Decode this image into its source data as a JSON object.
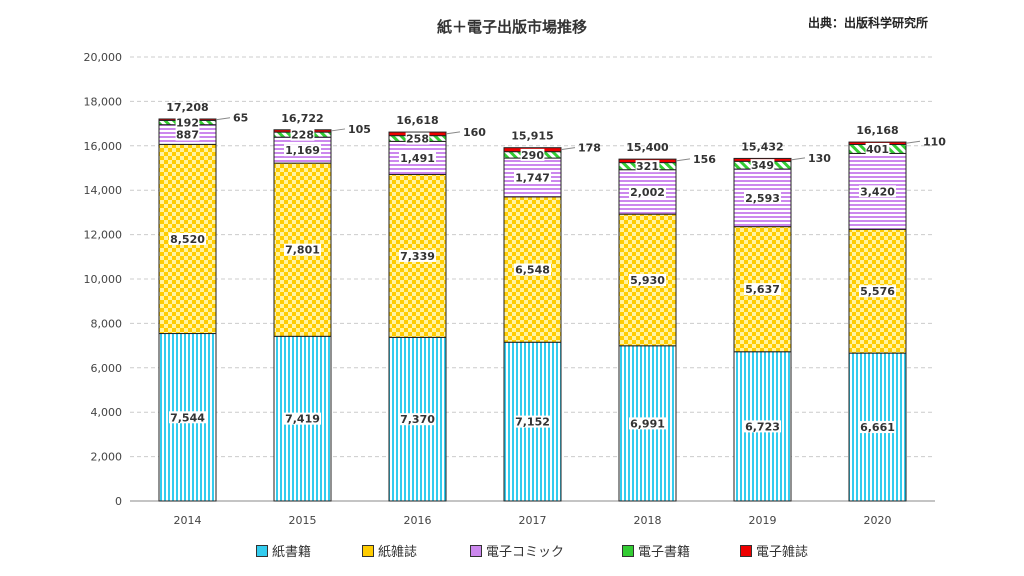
{
  "chart_data": {
    "type": "bar",
    "stacked": true,
    "title": "紙＋電子出版市場推移",
    "source": "出典：出版科学研究所",
    "xlabel": "",
    "ylabel": "",
    "ylim": [
      0,
      20000
    ],
    "yticks": [
      0,
      2000,
      4000,
      6000,
      8000,
      10000,
      12000,
      14000,
      16000,
      18000,
      20000
    ],
    "ytick_labels": [
      "0",
      "2,000",
      "4,000",
      "6,000",
      "8,000",
      "10,000",
      "12,000",
      "14,000",
      "16,000",
      "18,000",
      "20,000"
    ],
    "grid": "horizontal dashed",
    "legend_position": "bottom",
    "categories": [
      "2014",
      "2015",
      "2016",
      "2017",
      "2018",
      "2019",
      "2020"
    ],
    "series": [
      {
        "name": "紙書籍",
        "color": "#33ccee",
        "pattern": "vertical-stripes",
        "values": [
          7544,
          7419,
          7370,
          7152,
          6991,
          6723,
          6661
        ]
      },
      {
        "name": "紙雑誌",
        "color": "#ffcc00",
        "pattern": "checker",
        "values": [
          8520,
          7801,
          7339,
          6548,
          5930,
          5637,
          5576
        ]
      },
      {
        "name": "電子コミック",
        "color": "#cc88ee",
        "pattern": "horizontal-stripes",
        "values": [
          887,
          1169,
          1491,
          1747,
          2002,
          2593,
          3420
        ]
      },
      {
        "name": "電子書籍",
        "color": "#33cc33",
        "pattern": "diagonal-stripes",
        "values": [
          192,
          228,
          258,
          290,
          321,
          349,
          401
        ]
      },
      {
        "name": "電子雑誌",
        "color": "#ee0000",
        "pattern": "solid",
        "values": [
          65,
          105,
          160,
          178,
          156,
          130,
          110
        ]
      }
    ],
    "totals": [
      17208,
      16722,
      16618,
      15915,
      15400,
      15432,
      16168
    ]
  }
}
